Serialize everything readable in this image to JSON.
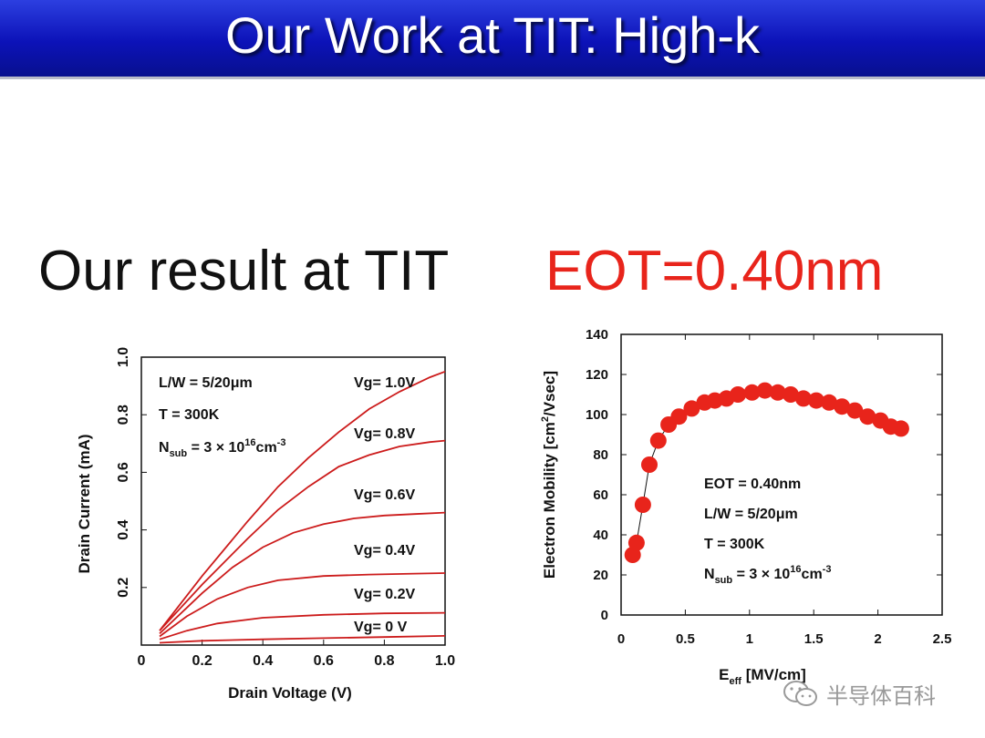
{
  "slide": {
    "title": "Our Work at TIT: High-k",
    "subtitle": "Our result at TIT",
    "eot_heading": "EOT=0.40nm"
  },
  "colors": {
    "title_bar": "#0c12b8",
    "accent_red": "#e8241b",
    "curve_red": "#cc1b1b"
  },
  "watermark": {
    "text": "半导体百科",
    "icon": "wechat-icon"
  },
  "chart_data": [
    {
      "type": "line",
      "xlabel": "Drain Voltage (V)",
      "ylabel": "Drain Current (mA)",
      "xlim": [
        0,
        1.0
      ],
      "ylim": [
        0,
        1.0
      ],
      "xticks": [
        "0",
        "0.2",
        "0.4",
        "0.6",
        "0.8",
        "1.0"
      ],
      "yticks": [
        "0.2",
        "0.4",
        "0.6",
        "0.8",
        "1.0"
      ],
      "annotations": {
        "lw": "L/W = 5/20μm",
        "temp": "T = 300K",
        "nsub_prefix": "N",
        "nsub_sub": "sub",
        "nsub_mid": " = 3 × 10",
        "nsub_exp": "16",
        "nsub_unit": "cm",
        "nsub_unit_exp": "-3"
      },
      "series": [
        {
          "name": "Vg= 1.0V",
          "x": [
            0.06,
            0.2,
            0.35,
            0.45,
            0.55,
            0.65,
            0.75,
            0.85,
            0.95,
            1.0
          ],
          "values": [
            0.05,
            0.24,
            0.43,
            0.55,
            0.65,
            0.74,
            0.82,
            0.88,
            0.93,
            0.95
          ]
        },
        {
          "name": "Vg= 0.8V",
          "x": [
            0.06,
            0.2,
            0.35,
            0.45,
            0.55,
            0.65,
            0.75,
            0.85,
            0.95,
            1.0
          ],
          "values": [
            0.05,
            0.21,
            0.37,
            0.47,
            0.55,
            0.62,
            0.66,
            0.69,
            0.705,
            0.71
          ]
        },
        {
          "name": "Vg= 0.6V",
          "x": [
            0.06,
            0.2,
            0.3,
            0.4,
            0.5,
            0.6,
            0.7,
            0.8,
            0.9,
            1.0
          ],
          "values": [
            0.04,
            0.18,
            0.27,
            0.34,
            0.39,
            0.42,
            0.44,
            0.45,
            0.455,
            0.46
          ]
        },
        {
          "name": "Vg= 0.4V",
          "x": [
            0.06,
            0.15,
            0.25,
            0.35,
            0.45,
            0.6,
            0.75,
            0.9,
            1.0
          ],
          "values": [
            0.03,
            0.1,
            0.16,
            0.2,
            0.225,
            0.24,
            0.245,
            0.248,
            0.25
          ]
        },
        {
          "name": "Vg= 0.2V",
          "x": [
            0.06,
            0.15,
            0.25,
            0.4,
            0.6,
            0.8,
            1.0
          ],
          "values": [
            0.02,
            0.05,
            0.075,
            0.095,
            0.105,
            0.11,
            0.112
          ]
        },
        {
          "name": "Vg=  0 V",
          "x": [
            0.06,
            0.2,
            0.4,
            0.6,
            0.8,
            1.0
          ],
          "values": [
            0.008,
            0.015,
            0.02,
            0.024,
            0.028,
            0.032
          ]
        }
      ]
    },
    {
      "type": "scatter",
      "xlabel_prefix": "E",
      "xlabel_sub": "eff",
      "xlabel_suffix": " [MV/cm]",
      "ylabel_prefix": "Electron Mobility [cm",
      "ylabel_sup": "2",
      "ylabel_suffix": "/Vsec]",
      "xlim": [
        0,
        2.5
      ],
      "ylim": [
        0,
        140
      ],
      "xticks": [
        "0",
        "0.5",
        "1",
        "1.5",
        "2",
        "2.5"
      ],
      "yticks": [
        "0",
        "20",
        "40",
        "60",
        "80",
        "100",
        "120",
        "140"
      ],
      "annotations": {
        "eot": "EOT = 0.40nm",
        "lw": "L/W = 5/20μm",
        "temp": "T = 300K",
        "nsub_prefix": "N",
        "nsub_sub": "sub",
        "nsub_mid": " = 3 × 10",
        "nsub_exp": "16",
        "nsub_unit": "cm",
        "nsub_unit_exp": "-3"
      },
      "x": [
        0.09,
        0.12,
        0.17,
        0.22,
        0.29,
        0.37,
        0.45,
        0.55,
        0.65,
        0.73,
        0.82,
        0.91,
        1.02,
        1.12,
        1.22,
        1.32,
        1.42,
        1.52,
        1.62,
        1.72,
        1.82,
        1.92,
        2.02,
        2.1,
        2.18
      ],
      "values": [
        30,
        36,
        55,
        75,
        87,
        95,
        99,
        103,
        106,
        107,
        108,
        110,
        111,
        112,
        111,
        110,
        108,
        107,
        106,
        104,
        102,
        99,
        97,
        94,
        93
      ]
    }
  ]
}
